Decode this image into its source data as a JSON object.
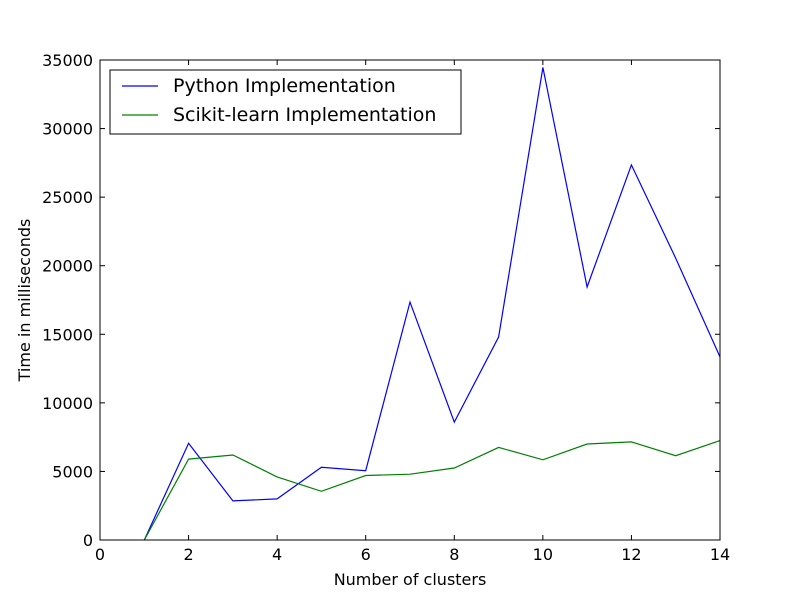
{
  "chart_data": {
    "type": "line",
    "title": "",
    "xlabel": "Number of clusters",
    "ylabel": "Time in milliseconds",
    "xlim": [
      0,
      14
    ],
    "ylim": [
      0,
      35000
    ],
    "xticks": [
      0,
      2,
      4,
      6,
      8,
      10,
      12,
      14
    ],
    "yticks": [
      0,
      5000,
      10000,
      15000,
      20000,
      25000,
      30000,
      35000
    ],
    "grid": false,
    "legend": "top-left",
    "x": [
      1,
      2,
      3,
      4,
      5,
      6,
      7,
      8,
      9,
      10,
      11,
      12,
      13,
      14
    ],
    "series": [
      {
        "name": "Python Implementation",
        "color": "#0000ff",
        "values": [
          0,
          7050,
          2850,
          3000,
          5300,
          5050,
          17350,
          8600,
          14800,
          34450,
          18450,
          27350,
          20550,
          13350
        ]
      },
      {
        "name": "Scikit-learn Implementation",
        "color": "#008000",
        "values": [
          0,
          5900,
          6200,
          4600,
          3550,
          4700,
          4800,
          5250,
          6750,
          5850,
          7000,
          7150,
          6150,
          7250
        ]
      }
    ]
  }
}
